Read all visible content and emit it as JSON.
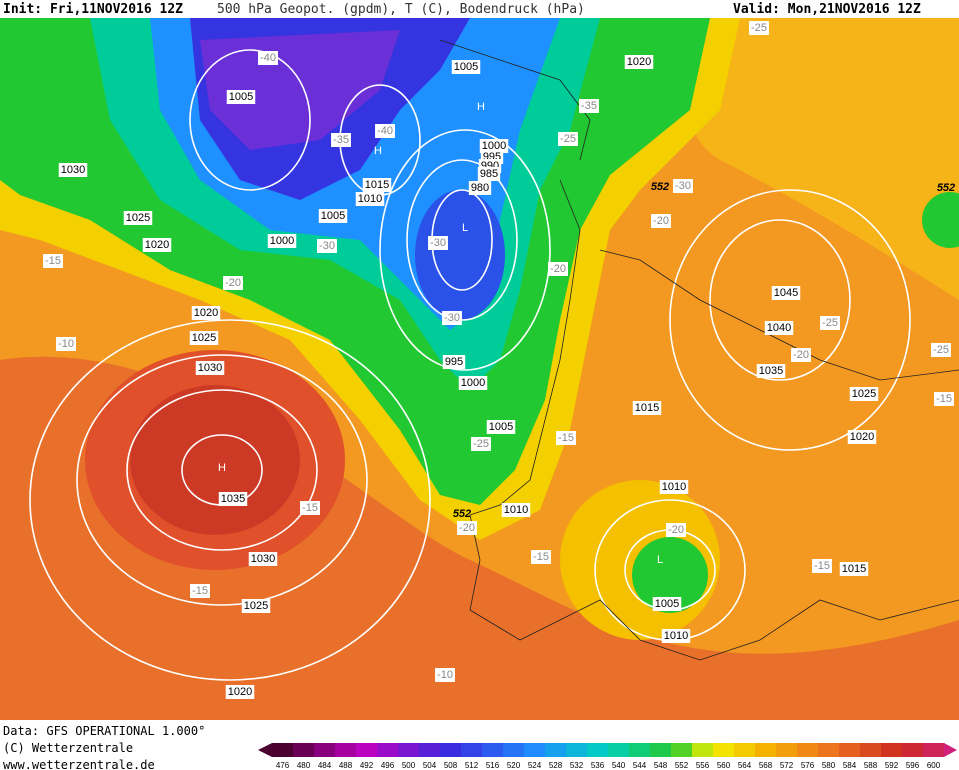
{
  "header": {
    "init": "Init: Fri,11NOV2016 12Z",
    "title": "500 hPa Geopot. (gpdm), T (C), Bodendruck (hPa)",
    "valid": "Valid: Mon,21NOV2016 12Z"
  },
  "map": {
    "isobar_labels": [
      "1005",
      "1020",
      "1005",
      "1030",
      "1025",
      "1020",
      "1000",
      "995",
      "990",
      "985",
      "980",
      "1015",
      "1010",
      "1005",
      "1000",
      "1020",
      "1025",
      "1030",
      "1035",
      "1030",
      "1025",
      "1020",
      "995",
      "1000",
      "1005",
      "1010",
      "1015",
      "1045",
      "1040",
      "1035",
      "1025",
      "1020",
      "1010",
      "1005",
      "1010",
      "1015"
    ],
    "temperature_labels": [
      "-40",
      "-40",
      "-35",
      "-35",
      "-25",
      "-30",
      "-20",
      "-30",
      "-30",
      "-20",
      "-20",
      "-15",
      "-10",
      "-30",
      "-25",
      "-15",
      "-15",
      "-20",
      "-15",
      "-15",
      "-10",
      "-20",
      "-25",
      "-25",
      "-20",
      "-25",
      "-15",
      "-15"
    ],
    "pressure_centers": [
      "H",
      "H",
      "H",
      "L",
      "L"
    ],
    "height_labels": [
      "552",
      "552",
      "552"
    ]
  },
  "footer": {
    "source": "Data: GFS OPERATIONAL 1.000°",
    "copyright": "(C) Wetterzentrale",
    "url": "www.wetterzentrale.de"
  },
  "color_scale": {
    "labels": [
      476,
      480,
      484,
      488,
      492,
      496,
      500,
      504,
      508,
      512,
      516,
      520,
      524,
      528,
      532,
      536,
      540,
      544,
      548,
      552,
      556,
      560,
      564,
      568,
      572,
      576,
      580,
      584,
      588,
      592,
      596,
      600
    ]
  }
}
